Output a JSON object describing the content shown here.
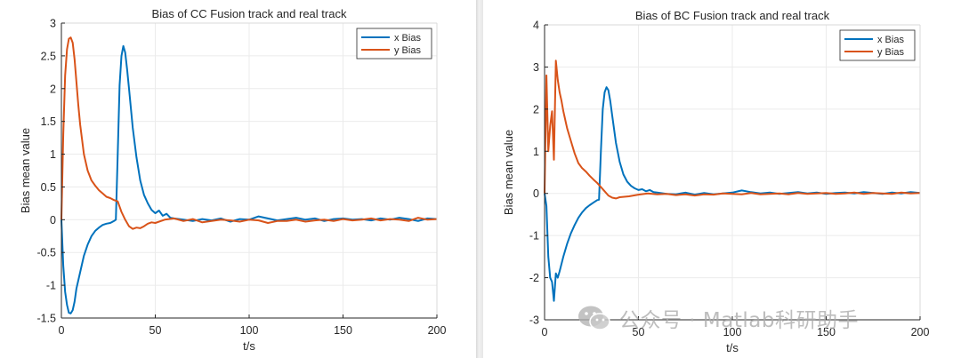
{
  "watermark": {
    "text": "公众号 · Matlab科研助手",
    "icon": "wechat-icon"
  },
  "colors": {
    "x_bias": "#0072BD",
    "y_bias": "#D95319",
    "grid": "#ebebeb",
    "axis": "#262626"
  },
  "chart_data": [
    {
      "type": "line",
      "title": "Bias of CC Fusion track and real track",
      "xlabel": "t/s",
      "ylabel": "Bias mean value",
      "xlim": [
        0,
        200
      ],
      "ylim": [
        -1.5,
        3
      ],
      "xticks": [
        0,
        50,
        100,
        150,
        200
      ],
      "yticks": [
        -1.5,
        -1,
        -0.5,
        0,
        0.5,
        1,
        1.5,
        2,
        2.5,
        3
      ],
      "xtick_labels": [
        "0",
        "50",
        "100",
        "150",
        "200"
      ],
      "ytick_labels": [
        "-1.5",
        "-1",
        "-0.5",
        "0",
        "0.5",
        "1",
        "1.5",
        "2",
        "2.5",
        "3"
      ],
      "grid": true,
      "legend_position": "top-right",
      "series": [
        {
          "name": "x Bias",
          "color": "#0072BD",
          "x": [
            0,
            1,
            2,
            3,
            4,
            5,
            6,
            7,
            8,
            10,
            12,
            14,
            16,
            18,
            20,
            22,
            24,
            26,
            28,
            29,
            30,
            31,
            32,
            33,
            34,
            35,
            36,
            38,
            40,
            42,
            44,
            46,
            48,
            50,
            52,
            54,
            56,
            58,
            60,
            65,
            70,
            75,
            80,
            85,
            90,
            95,
            100,
            105,
            110,
            115,
            120,
            125,
            130,
            135,
            140,
            145,
            150,
            155,
            160,
            165,
            170,
            175,
            180,
            185,
            190,
            195,
            200
          ],
          "y": [
            0,
            -0.7,
            -1.1,
            -1.3,
            -1.42,
            -1.43,
            -1.38,
            -1.25,
            -1.05,
            -0.8,
            -0.55,
            -0.38,
            -0.25,
            -0.17,
            -0.12,
            -0.08,
            -0.06,
            -0.05,
            -0.02,
            0,
            1.0,
            2.05,
            2.5,
            2.65,
            2.55,
            2.3,
            2.0,
            1.4,
            0.95,
            0.6,
            0.38,
            0.25,
            0.15,
            0.1,
            0.14,
            0.06,
            0.09,
            0.03,
            0.02,
            0.0,
            -0.02,
            0.01,
            -0.01,
            0.02,
            -0.03,
            0.01,
            0.0,
            0.05,
            0.02,
            -0.01,
            0.01,
            0.03,
            0.0,
            0.02,
            -0.02,
            0.01,
            0.02,
            0.0,
            0.01,
            -0.01,
            0.02,
            0.0,
            0.03,
            0.01,
            -0.02,
            0.02,
            0.01
          ]
        },
        {
          "name": "y Bias",
          "color": "#D95319",
          "x": [
            0,
            1,
            2,
            3,
            4,
            5,
            6,
            7,
            8,
            9,
            10,
            12,
            14,
            16,
            18,
            20,
            22,
            24,
            26,
            28,
            30,
            32,
            34,
            36,
            38,
            40,
            42,
            44,
            46,
            48,
            50,
            55,
            60,
            65,
            70,
            75,
            80,
            85,
            90,
            95,
            100,
            105,
            110,
            115,
            120,
            125,
            130,
            135,
            140,
            145,
            150,
            155,
            160,
            165,
            170,
            175,
            180,
            185,
            190,
            195,
            200
          ],
          "y": [
            0,
            1.3,
            2.2,
            2.6,
            2.76,
            2.78,
            2.7,
            2.45,
            2.1,
            1.75,
            1.45,
            1.0,
            0.75,
            0.6,
            0.52,
            0.45,
            0.4,
            0.35,
            0.33,
            0.3,
            0.28,
            0.12,
            0.0,
            -0.1,
            -0.14,
            -0.12,
            -0.13,
            -0.1,
            -0.06,
            -0.04,
            -0.05,
            0.0,
            0.02,
            -0.02,
            0.01,
            -0.04,
            -0.02,
            0.0,
            -0.01,
            -0.03,
            0.0,
            -0.01,
            -0.05,
            -0.02,
            -0.02,
            0.0,
            -0.03,
            -0.01,
            0.0,
            -0.02,
            0.01,
            -0.01,
            0.0,
            0.02,
            -0.01,
            0.01,
            0.0,
            -0.02,
            0.03,
            0.0,
            0.01
          ]
        }
      ]
    },
    {
      "type": "line",
      "title": "Bias of BC Fusion track and real track",
      "xlabel": "t/s",
      "ylabel": "Bias mean value",
      "xlim": [
        0,
        200
      ],
      "ylim": [
        -3,
        4
      ],
      "xticks": [
        0,
        50,
        100,
        150,
        200
      ],
      "yticks": [
        -3,
        -2,
        -1,
        0,
        1,
        2,
        3,
        4
      ],
      "xtick_labels": [
        "0",
        "50",
        "100",
        "150",
        "200"
      ],
      "ytick_labels": [
        "-3",
        "-2",
        "-1",
        "0",
        "1",
        "2",
        "3",
        "4"
      ],
      "grid": true,
      "legend_position": "top-right",
      "series": [
        {
          "name": "x Bias",
          "color": "#0072BD",
          "x": [
            0,
            1,
            2,
            3,
            4,
            5,
            6,
            7,
            8,
            10,
            12,
            14,
            16,
            18,
            20,
            22,
            24,
            26,
            28,
            29,
            30,
            31,
            32,
            33,
            34,
            35,
            36,
            38,
            40,
            42,
            44,
            46,
            48,
            50,
            52,
            54,
            56,
            58,
            60,
            65,
            70,
            75,
            80,
            85,
            90,
            95,
            100,
            105,
            110,
            115,
            120,
            125,
            130,
            135,
            140,
            145,
            150,
            155,
            160,
            165,
            170,
            175,
            180,
            185,
            190,
            195,
            200
          ],
          "y": [
            0,
            -0.3,
            -1.5,
            -2.0,
            -2.1,
            -2.55,
            -1.9,
            -2.0,
            -1.85,
            -1.5,
            -1.2,
            -0.95,
            -0.75,
            -0.58,
            -0.45,
            -0.35,
            -0.28,
            -0.22,
            -0.16,
            -0.15,
            1.0,
            2.0,
            2.4,
            2.52,
            2.45,
            2.2,
            1.85,
            1.2,
            0.75,
            0.45,
            0.28,
            0.18,
            0.12,
            0.08,
            0.1,
            0.05,
            0.08,
            0.03,
            0.02,
            -0.01,
            -0.02,
            0.02,
            -0.03,
            0.01,
            -0.02,
            0.0,
            0.02,
            0.07,
            0.03,
            0.0,
            0.02,
            -0.01,
            0.01,
            0.03,
            0.0,
            0.02,
            -0.01,
            0.01,
            0.02,
            0.0,
            0.03,
            0.01,
            -0.01,
            0.02,
            0.0,
            0.03,
            0.01
          ]
        },
        {
          "name": "y Bias",
          "color": "#D95319",
          "x": [
            0,
            1,
            2,
            3,
            4,
            5,
            6,
            7,
            8,
            9,
            10,
            12,
            14,
            16,
            18,
            20,
            22,
            24,
            26,
            28,
            30,
            32,
            34,
            36,
            38,
            40,
            45,
            50,
            55,
            60,
            65,
            70,
            75,
            80,
            85,
            90,
            95,
            100,
            105,
            110,
            115,
            120,
            125,
            130,
            135,
            140,
            145,
            150,
            155,
            160,
            165,
            170,
            175,
            180,
            185,
            190,
            195,
            200
          ],
          "y": [
            0,
            2.8,
            1.0,
            1.6,
            1.95,
            0.8,
            3.15,
            2.7,
            2.4,
            2.2,
            1.95,
            1.55,
            1.25,
            0.95,
            0.72,
            0.6,
            0.52,
            0.42,
            0.33,
            0.25,
            0.15,
            0.05,
            -0.05,
            -0.1,
            -0.12,
            -0.09,
            -0.07,
            -0.03,
            0.0,
            -0.02,
            -0.01,
            -0.04,
            -0.02,
            -0.05,
            -0.02,
            -0.03,
            0.0,
            -0.01,
            -0.02,
            0.01,
            -0.02,
            -0.01,
            0.0,
            -0.02,
            0.01,
            -0.01,
            0.0,
            0.01,
            -0.01,
            0.0,
            0.02,
            -0.01,
            0.01,
            0.0,
            -0.01,
            0.02,
            0.0,
            0.01
          ]
        }
      ]
    }
  ]
}
